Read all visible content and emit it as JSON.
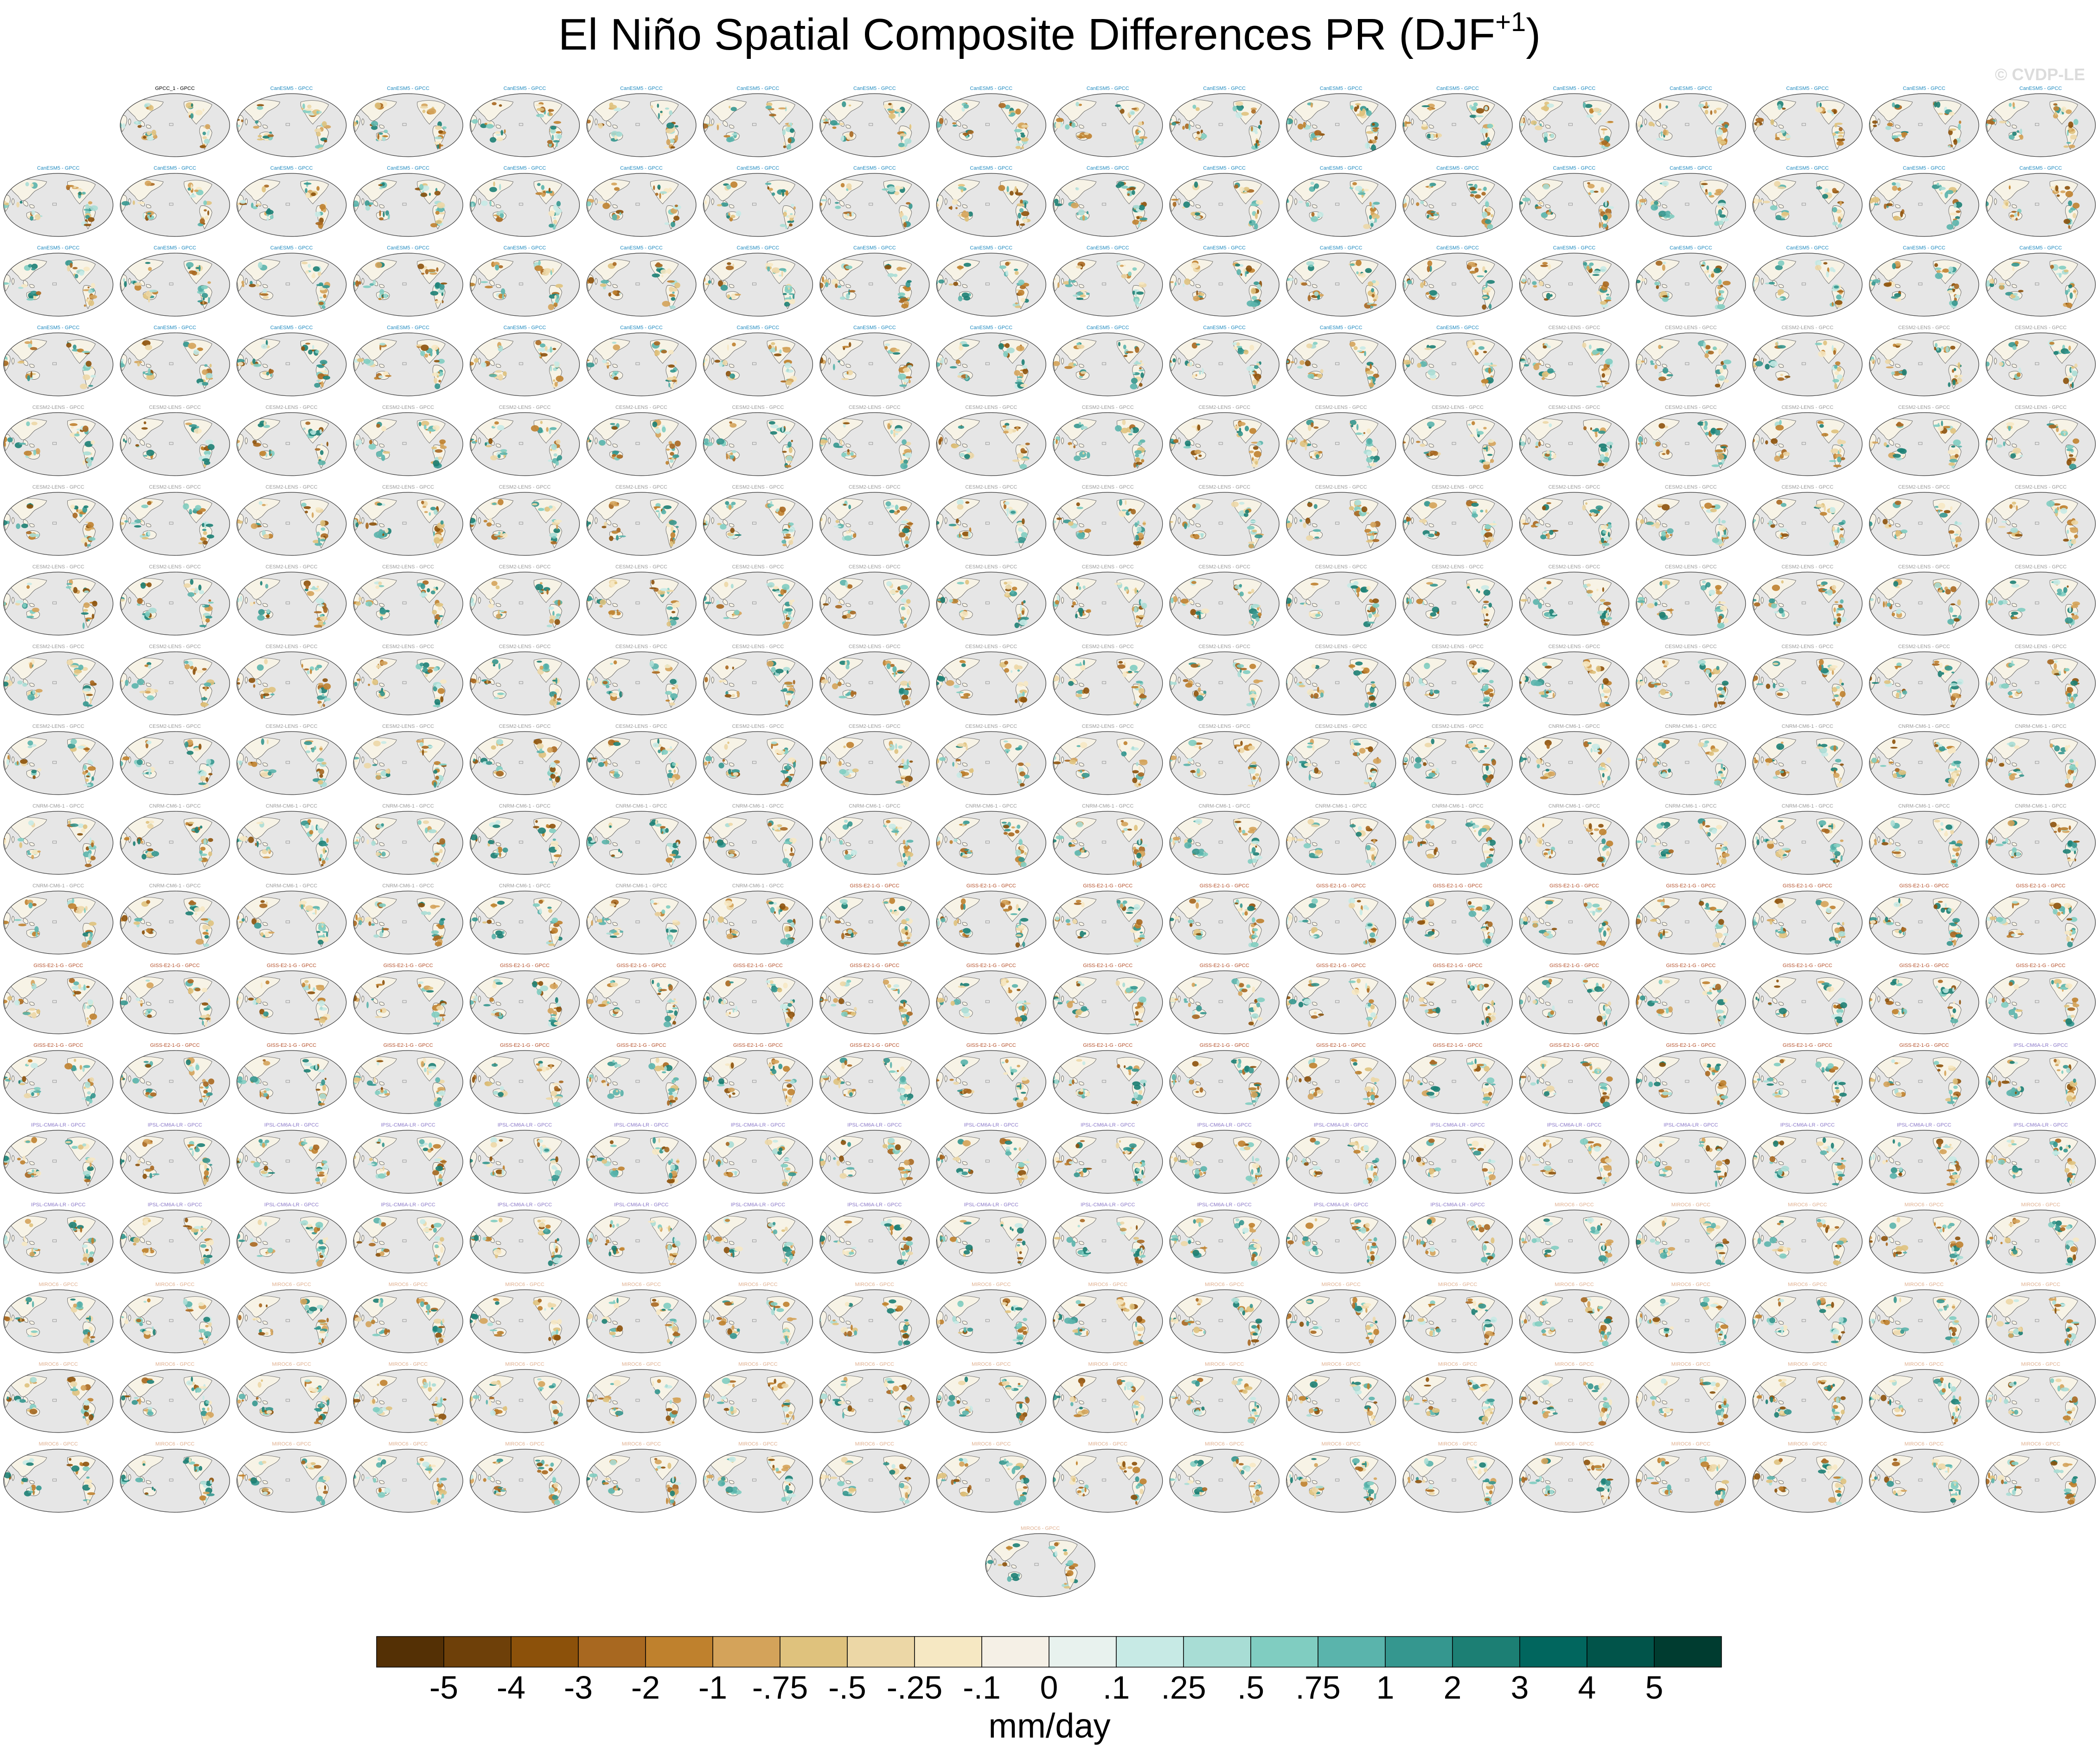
{
  "title": {
    "main": "El Niño Spatial Composite Differences PR (DJF",
    "superscript": "+1",
    "close": ")"
  },
  "watermark": "© CVDP-LE",
  "chart_data": {
    "type": "heatmap",
    "description_kind": "small-multiple global map panels",
    "panel_grid": {
      "rows": 18,
      "cols": 18,
      "first_row_start_col": 1,
      "extra_centered_panels": 1
    },
    "panel_count": 307,
    "panel_groups": [
      {
        "title": "GPCC_1 - GPCC",
        "count": 1,
        "color": "#000000"
      },
      {
        "title": "CanESM5 - GPCC",
        "count": 65,
        "color": "#1f8ac0"
      },
      {
        "title": "CESM2-LENS - GPCC",
        "count": 90,
        "color": "#9a9a9a"
      },
      {
        "title": "CNRM-CM6-1 - GPCC",
        "count": 30,
        "color": "#9a9a9a"
      },
      {
        "title": "GISS-E2-1-G - GPCC",
        "count": 46,
        "color": "#b5502a"
      },
      {
        "title": "IPSL-CM6A-LR - GPCC",
        "count": 32,
        "color": "#8a78c8"
      },
      {
        "title": "MIROC6 - GPCC",
        "count": 43,
        "color": "#e0b090"
      }
    ],
    "colorbar": {
      "labels": [
        "-5",
        "-4",
        "-3",
        "-2",
        "-1",
        "-.75",
        "-.5",
        "-.25",
        "-.1",
        "0",
        ".1",
        ".25",
        ".5",
        ".75",
        "1",
        "2",
        "3",
        "4",
        "5"
      ],
      "colors": [
        "#543005",
        "#6e4009",
        "#8c510a",
        "#a86820",
        "#bf812d",
        "#d4a35a",
        "#dfc27d",
        "#ecd7a6",
        "#f6e8c3",
        "#f5f0e6",
        "#e8f2ee",
        "#c7eae5",
        "#a8ddd5",
        "#80cdc1",
        "#5ab4ac",
        "#35978f",
        "#1c7f74",
        "#01665e",
        "#01544a",
        "#003c30"
      ],
      "units": "mm/day"
    }
  }
}
